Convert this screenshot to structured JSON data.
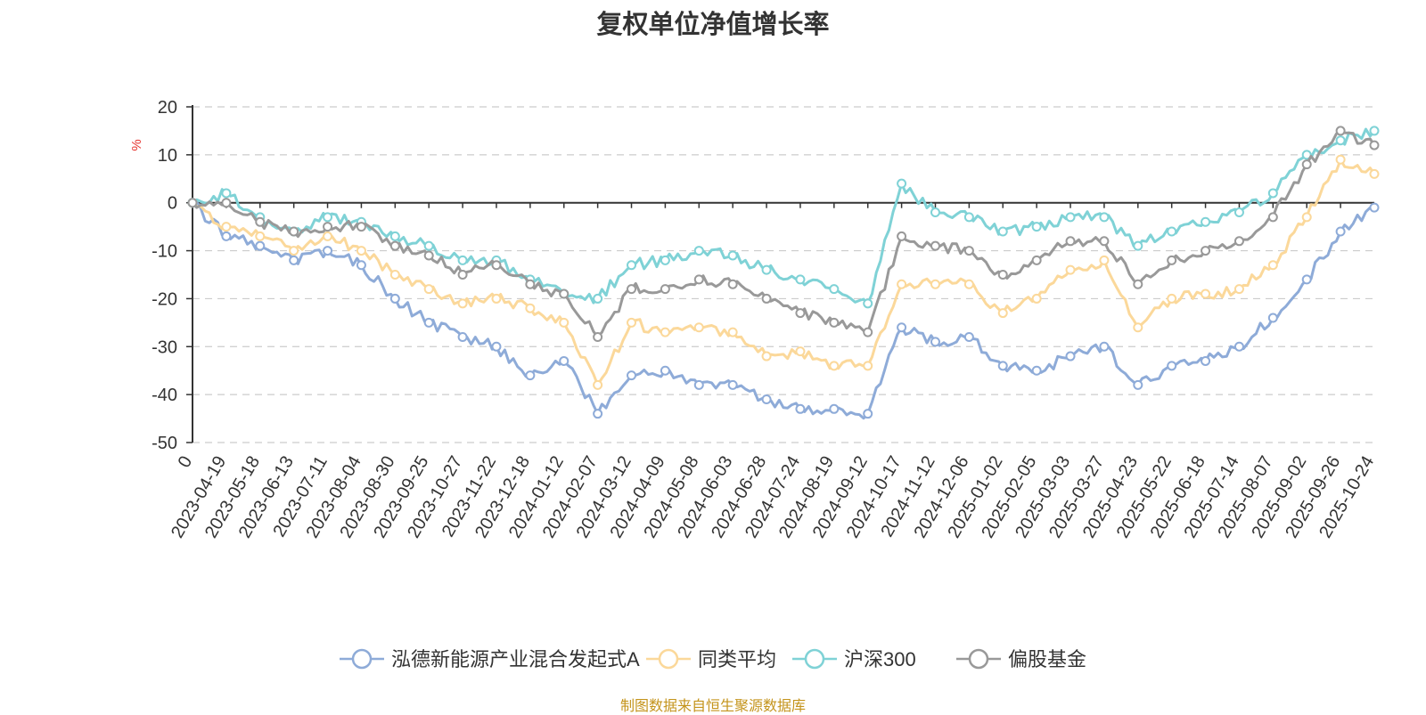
{
  "chart_data": {
    "type": "line",
    "title": "复权单位净值增长率",
    "ylabel": "%",
    "xlabel": "",
    "ylim": [
      -50,
      20
    ],
    "yticks": [
      20,
      10,
      0,
      -10,
      -20,
      -30,
      -40,
      -50
    ],
    "grid": true,
    "legend_position": "bottom",
    "x": [
      "0",
      "2023-04-19",
      "2023-05-18",
      "2023-06-13",
      "2023-07-11",
      "2023-08-04",
      "2023-08-30",
      "2023-09-25",
      "2023-10-27",
      "2023-11-22",
      "2023-12-18",
      "2024-01-12",
      "2024-02-07",
      "2024-03-12",
      "2024-04-09",
      "2024-05-08",
      "2024-06-03",
      "2024-06-28",
      "2024-07-24",
      "2024-08-19",
      "2024-09-12",
      "2024-10-17",
      "2024-11-12",
      "2024-12-06",
      "2025-01-02",
      "2025-02-05",
      "2025-03-03",
      "2025-03-27",
      "2025-04-23",
      "2025-05-22",
      "2025-06-18",
      "2025-07-14",
      "2025-08-07",
      "2025-09-02",
      "2025-09-26",
      "2025-10-24"
    ],
    "series": [
      {
        "name": "泓德新能源产业混合发起式A",
        "color": "#8eabd8",
        "values": [
          0,
          -7,
          -9,
          -12,
          -10,
          -13,
          -20,
          -25,
          -28,
          -30,
          -36,
          -33,
          -44,
          -36,
          -35,
          -38,
          -38,
          -41,
          -43,
          -43,
          -44,
          -26,
          -29,
          -28,
          -34,
          -35,
          -32,
          -30,
          -38,
          -34,
          -33,
          -30,
          -24,
          -16,
          -6,
          -1
        ]
      },
      {
        "name": "同类平均",
        "color": "#fbd89a",
        "values": [
          0,
          -5,
          -7,
          -10,
          -7,
          -10,
          -15,
          -18,
          -21,
          -20,
          -22,
          -25,
          -38,
          -25,
          -27,
          -26,
          -27,
          -32,
          -31,
          -34,
          -34,
          -17,
          -17,
          -17,
          -23,
          -20,
          -14,
          -12,
          -26,
          -20,
          -19,
          -18,
          -13,
          -3,
          9,
          6
        ]
      },
      {
        "name": "沪深300",
        "color": "#7fd2d6",
        "values": [
          0,
          2,
          -3,
          -6,
          -3,
          -4,
          -7,
          -9,
          -12,
          -12,
          -16,
          -19,
          -20,
          -13,
          -12,
          -10,
          -11,
          -14,
          -16,
          -18,
          -21,
          4,
          -2,
          -3,
          -6,
          -5,
          -3,
          -3,
          -9,
          -6,
          -4,
          -2,
          2,
          10,
          13,
          15
        ]
      },
      {
        "name": "偏股基金",
        "color": "#999999",
        "values": [
          0,
          0,
          -4,
          -6,
          -5,
          -5,
          -9,
          -11,
          -15,
          -13,
          -17,
          -19,
          -28,
          -18,
          -18,
          -16,
          -17,
          -20,
          -23,
          -25,
          -27,
          -7,
          -9,
          -10,
          -15,
          -12,
          -8,
          -8,
          -17,
          -12,
          -10,
          -8,
          -3,
          8,
          15,
          12
        ]
      }
    ]
  },
  "footer": {
    "source": "制图数据来自恒生聚源数据库"
  }
}
